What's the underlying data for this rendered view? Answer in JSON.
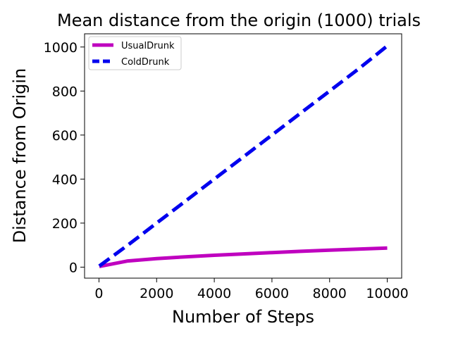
{
  "chart_data": {
    "type": "line",
    "title": "Mean distance from the origin (1000) trials",
    "xlabel": "Number of Steps",
    "ylabel": "Distance from Origin",
    "xlim": [
      -500,
      10500
    ],
    "ylim": [
      -50,
      1060
    ],
    "xticks": [
      0,
      2000,
      4000,
      6000,
      8000,
      10000
    ],
    "yticks": [
      0,
      200,
      400,
      600,
      800,
      1000
    ],
    "grid": false,
    "legend_position": "top-left",
    "series": [
      {
        "name": "UsualDrunk",
        "color": "#bf00bf",
        "style": "solid",
        "x": [
          10,
          1000,
          2000,
          3000,
          4000,
          5000,
          6000,
          7000,
          8000,
          9000,
          10000
        ],
        "y": [
          3,
          28,
          39,
          47,
          54,
          60,
          66,
          72,
          77,
          82,
          87
        ]
      },
      {
        "name": "ColdDrunk",
        "color": "#0000ee",
        "style": "dashed",
        "x": [
          10,
          1000,
          2000,
          3000,
          4000,
          5000,
          6000,
          7000,
          8000,
          9000,
          10000
        ],
        "y": [
          5,
          100,
          200,
          300,
          400,
          500,
          600,
          700,
          800,
          900,
          1005
        ]
      }
    ]
  }
}
